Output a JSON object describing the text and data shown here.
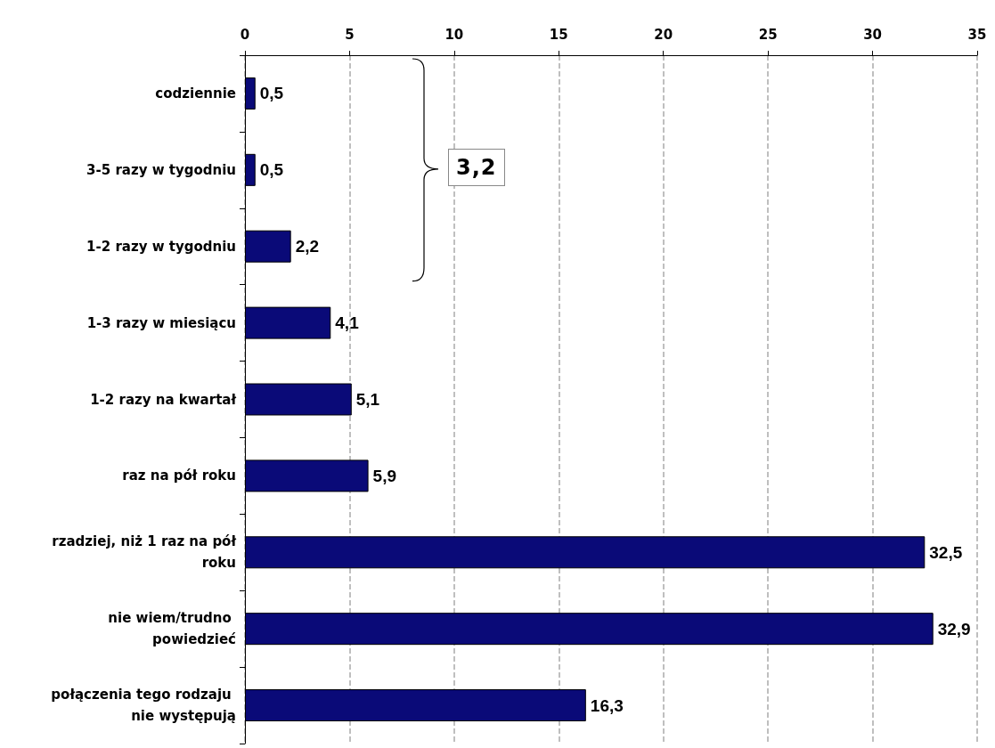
{
  "chart_data": {
    "type": "bar",
    "orientation": "horizontal",
    "categories": [
      "codziennie",
      "3-5 razy w tygodniu",
      "1-2 razy w tygodniu",
      "1-3 razy w miesiącu",
      "1-2 razy na kwartał",
      "raz na pół roku",
      "rzadziej, niż 1 raz na pół roku",
      "nie wiem/trudno powiedzieć",
      "połączenia tego rodzaju nie występują"
    ],
    "values": [
      0.5,
      0.5,
      2.2,
      4.1,
      5.1,
      5.9,
      32.5,
      32.9,
      16.3
    ],
    "value_labels": [
      "0,5",
      "0,5",
      "2,2",
      "4,1",
      "5,1",
      "5,9",
      "32,5",
      "32,9",
      "16,3"
    ],
    "color": "#0a0a78",
    "xlim": [
      0,
      35
    ],
    "xticks": [
      0,
      5,
      10,
      15,
      20,
      25,
      30,
      35
    ],
    "grid": "x",
    "annotations": [
      "3,2"
    ]
  }
}
